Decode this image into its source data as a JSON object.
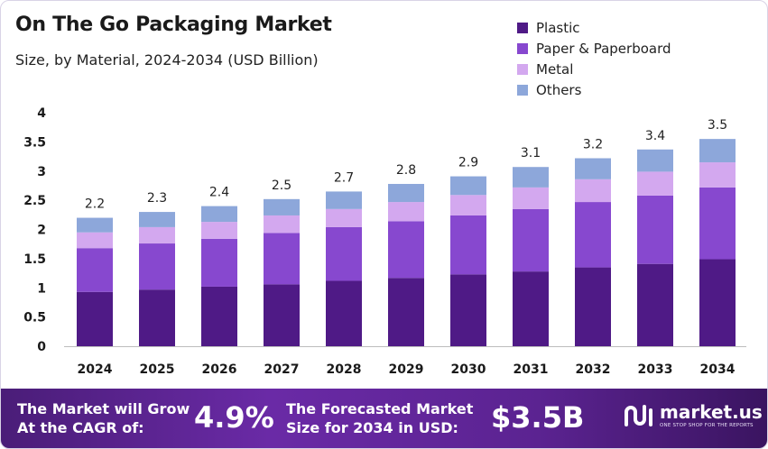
{
  "header": {
    "title": "On The Go Packaging Market",
    "subtitle": "Size, by Material, 2024-2034 (USD Billion)"
  },
  "chart_data": {
    "type": "bar",
    "stacked": true,
    "categories": [
      "2024",
      "2025",
      "2026",
      "2027",
      "2028",
      "2029",
      "2030",
      "2031",
      "2032",
      "2033",
      "2034"
    ],
    "series": [
      {
        "name": "Plastic",
        "color": "#4f1a86",
        "values": [
          0.93,
          0.97,
          1.02,
          1.06,
          1.12,
          1.17,
          1.23,
          1.28,
          1.35,
          1.41,
          1.49
        ]
      },
      {
        "name": "Paper & Paperboard",
        "color": "#8748cf",
        "values": [
          0.75,
          0.79,
          0.82,
          0.88,
          0.92,
          0.97,
          1.01,
          1.07,
          1.12,
          1.17,
          1.23
        ]
      },
      {
        "name": "Metal",
        "color": "#d3a8ef",
        "values": [
          0.27,
          0.28,
          0.29,
          0.3,
          0.31,
          0.33,
          0.35,
          0.37,
          0.39,
          0.41,
          0.43
        ]
      },
      {
        "name": "Others",
        "color": "#8da7da",
        "values": [
          0.25,
          0.26,
          0.27,
          0.28,
          0.3,
          0.31,
          0.32,
          0.35,
          0.36,
          0.38,
          0.4
        ]
      }
    ],
    "totals": [
      "2.2",
      "2.3",
      "2.4",
      "2.5",
      "2.7",
      "2.8",
      "2.9",
      "3.1",
      "3.2",
      "3.4",
      "3.5"
    ],
    "ylim": [
      0,
      4
    ],
    "yticks": [
      "0",
      "0.5",
      "1",
      "1.5",
      "2",
      "2.5",
      "3",
      "3.5",
      "4"
    ],
    "grid": false,
    "legend_position": "top-right"
  },
  "banner": {
    "cagr_text_1": "The Market will Grow",
    "cagr_text_2": "At the CAGR of:",
    "cagr_value": "4.9%",
    "forecast_text_1": "The Forecasted Market",
    "forecast_text_2": "Size for 2034 in USD:",
    "forecast_value": "$3.5B",
    "brand_name": "market.us",
    "brand_tagline": "ONE STOP SHOP FOR THE REPORTS",
    "brand_icon": "market-us-logo-icon"
  }
}
